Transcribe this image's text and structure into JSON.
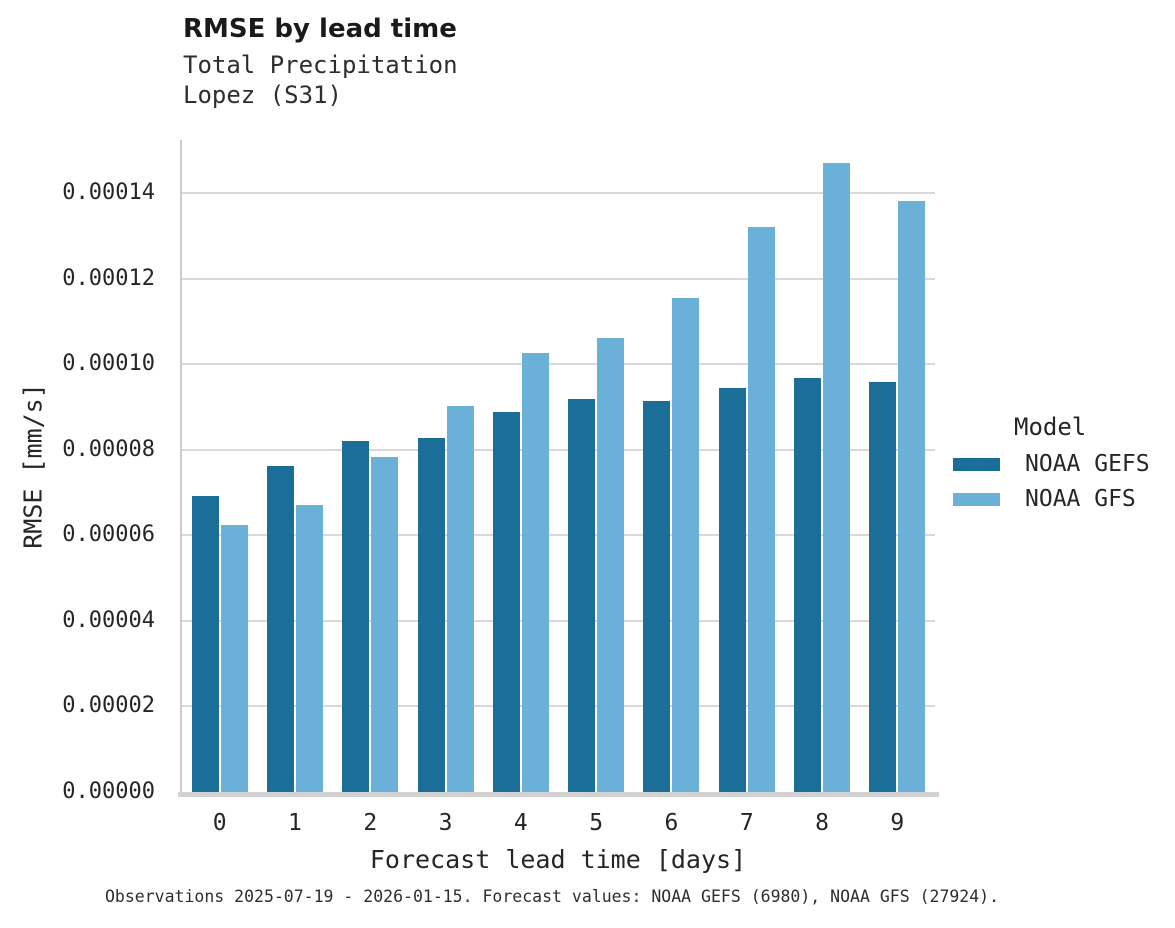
{
  "chart_data": {
    "type": "bar",
    "title": "RMSE by lead time",
    "subtitle": [
      "Total Precipitation",
      "Lopez (S31)"
    ],
    "xlabel": "Forecast lead time [days]",
    "ylabel": "RMSE [mm/s]",
    "categories": [
      "0",
      "1",
      "2",
      "3",
      "4",
      "5",
      "6",
      "7",
      "8",
      "9"
    ],
    "series": [
      {
        "name": "NOAA GEFS",
        "color": "#1b6e98",
        "values": [
          6.92e-05,
          7.63e-05,
          8.21e-05,
          8.27e-05,
          8.89e-05,
          9.19e-05,
          9.15e-05,
          9.45e-05,
          9.68e-05,
          9.59e-05
        ]
      },
      {
        "name": "NOAA GFS",
        "color": "#6ab0d8",
        "values": [
          6.25e-05,
          6.71e-05,
          7.84e-05,
          9.03e-05,
          0.0001027,
          0.0001062,
          0.0001155,
          0.0001321,
          0.0001471,
          0.0001382
        ]
      }
    ],
    "ylim": [
      0,
      0.0001525
    ],
    "yticks": [
      0,
      2e-05,
      4e-05,
      6e-05,
      8e-05,
      0.0001,
      0.00012,
      0.00014
    ],
    "ytick_decimals": 5,
    "grid": "horizontal",
    "legend_title": "Model",
    "legend_position": "right"
  },
  "footer": {
    "caption": "Observations 2025-07-19 - 2026-01-15. Forecast values: NOAA GEFS (6980), NOAA GFS (27924)."
  },
  "colors": {
    "bar_dark": "#1b6e98",
    "bar_light": "#6ab0d8",
    "gridline": "#d9d9d9",
    "axis_line": "#d2d2d2",
    "spine": "#cccccc",
    "text": "#262626"
  }
}
